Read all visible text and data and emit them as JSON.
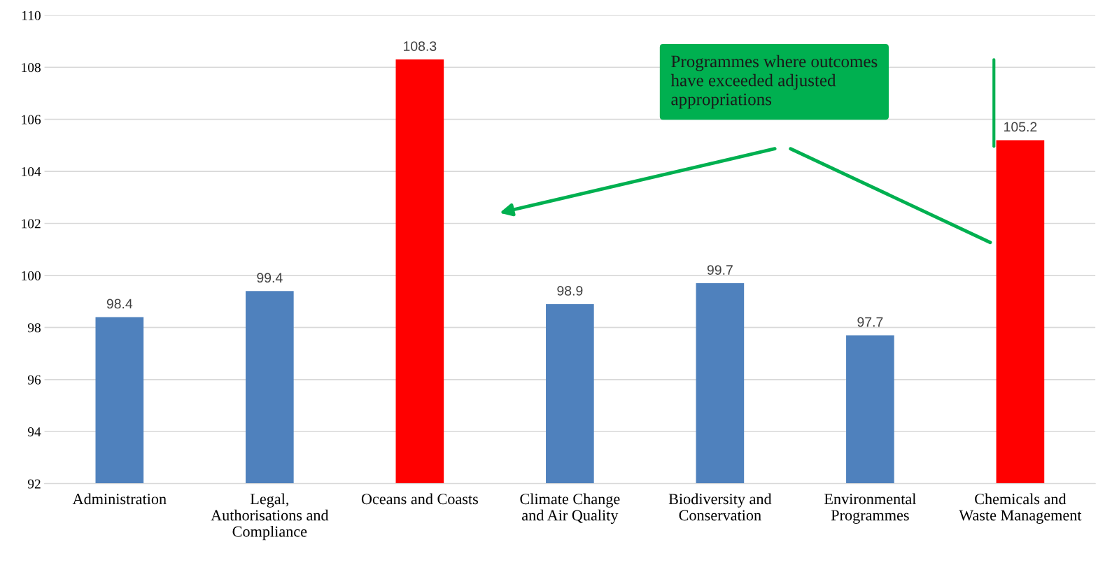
{
  "chart_data": {
    "type": "bar",
    "categories": [
      "Administration",
      "Legal,\nAuthorisations and\nCompliance",
      "Oceans and Coasts",
      "Climate Change\nand Air Quality",
      "Biodiversity and\nConservation",
      "Environmental\nProgrammes",
      "Chemicals and\nWaste Management"
    ],
    "values": [
      98.4,
      99.4,
      108.3,
      98.9,
      99.7,
      97.7,
      105.2
    ],
    "colors": [
      "#4f81bd",
      "#4f81bd",
      "#ff0000",
      "#4f81bd",
      "#4f81bd",
      "#4f81bd",
      "#ff0000"
    ],
    "data_labels": true,
    "ylim": [
      92,
      110
    ],
    "yticks": [
      92,
      94,
      96,
      98,
      100,
      102,
      104,
      106,
      108,
      110
    ],
    "grid": "y",
    "annotations": [
      "Programmes where outcomes\nhave exceeded adjusted\nappropriations"
    ]
  }
}
